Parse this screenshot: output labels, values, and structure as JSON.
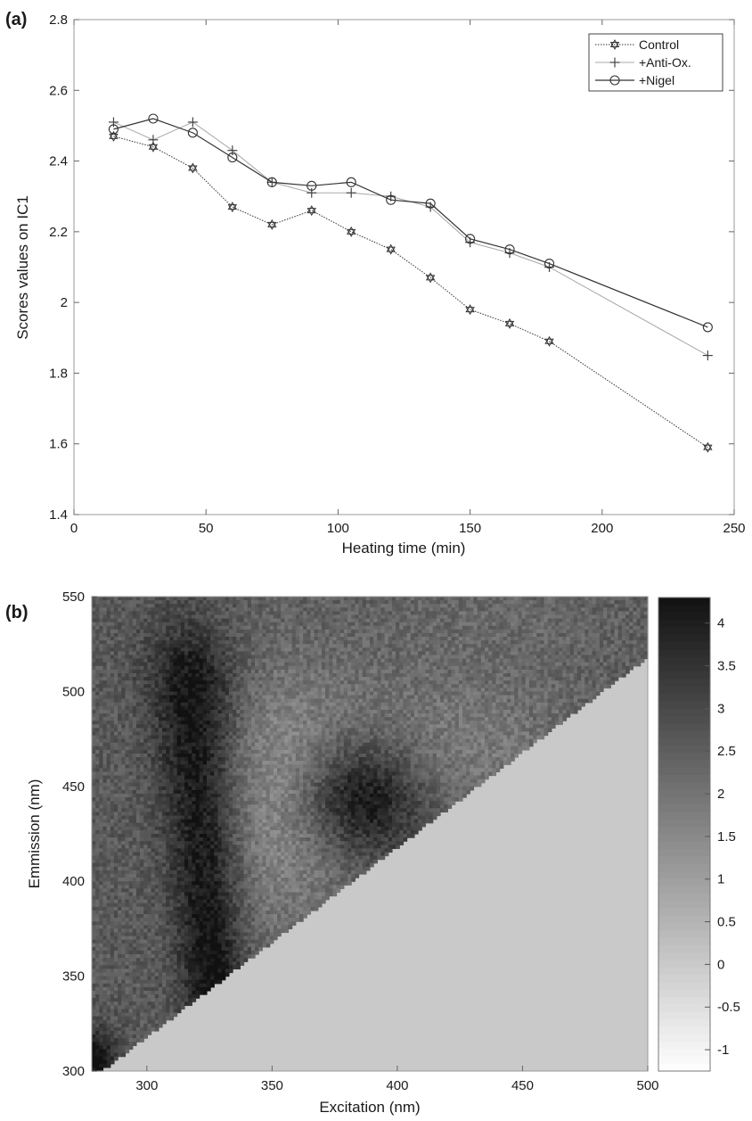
{
  "chart_data": [
    {
      "panel_label": "(a)",
      "type": "line",
      "xlabel": "Heating time (min)",
      "ylabel": "Scores values on IC1",
      "xlim": [
        0,
        250
      ],
      "ylim": [
        1.4,
        2.8
      ],
      "xticks": [
        "0",
        "50",
        "100",
        "150",
        "200",
        "250"
      ],
      "yticks": [
        "1.4",
        "1.6",
        "1.8",
        "2",
        "2.2",
        "2.4",
        "2.6",
        "2.8"
      ],
      "grid": false,
      "legend_position": "top-right",
      "x": [
        15,
        30,
        45,
        60,
        75,
        90,
        105,
        120,
        135,
        150,
        165,
        180,
        240
      ],
      "series": [
        {
          "name": "Control",
          "marker": "hexagram",
          "line": "dotted",
          "color": "#333333",
          "values": [
            2.47,
            2.44,
            2.38,
            2.27,
            2.22,
            2.26,
            2.2,
            2.15,
            2.07,
            1.98,
            1.94,
            1.89,
            1.59
          ]
        },
        {
          "name": "+Anti-Ox.",
          "marker": "plus",
          "line": "solid-light",
          "color": "#9a9a9a",
          "values": [
            2.51,
            2.46,
            2.51,
            2.43,
            2.34,
            2.31,
            2.31,
            2.3,
            2.27,
            2.17,
            2.14,
            2.1,
            1.85
          ]
        },
        {
          "name": "+Nigel",
          "marker": "circle",
          "line": "solid",
          "color": "#333333",
          "values": [
            2.49,
            2.52,
            2.48,
            2.41,
            2.34,
            2.33,
            2.34,
            2.29,
            2.28,
            2.18,
            2.15,
            2.11,
            1.93
          ]
        }
      ]
    },
    {
      "panel_label": "(b)",
      "type": "heatmap",
      "xlabel": "Excitation (nm)",
      "ylabel": "Emmission (nm)",
      "xlim": [
        278,
        500
      ],
      "ylim": [
        300,
        550
      ],
      "xticks": [
        "300",
        "350",
        "400",
        "450",
        "500"
      ],
      "yticks": [
        "300",
        "350",
        "400",
        "450",
        "500",
        "550"
      ],
      "colorbar_ticks": [
        "-1",
        "-0.5",
        "0",
        "0.5",
        "1",
        "1.5",
        "2",
        "2.5",
        "3",
        "3.5",
        "4"
      ],
      "colorbar_range": [
        -1.25,
        4.3
      ],
      "colormap": "gray-reversed",
      "masked_value": 0,
      "features": [
        {
          "kind": "band",
          "excitation": 322,
          "emission_range": [
            355,
            500
          ],
          "value": 4.0
        },
        {
          "kind": "blob",
          "excitation": 385,
          "emission": 445,
          "value": 3.8
        },
        {
          "kind": "halo",
          "excitation": 360,
          "emission": 445,
          "value": 2.3
        }
      ]
    }
  ]
}
